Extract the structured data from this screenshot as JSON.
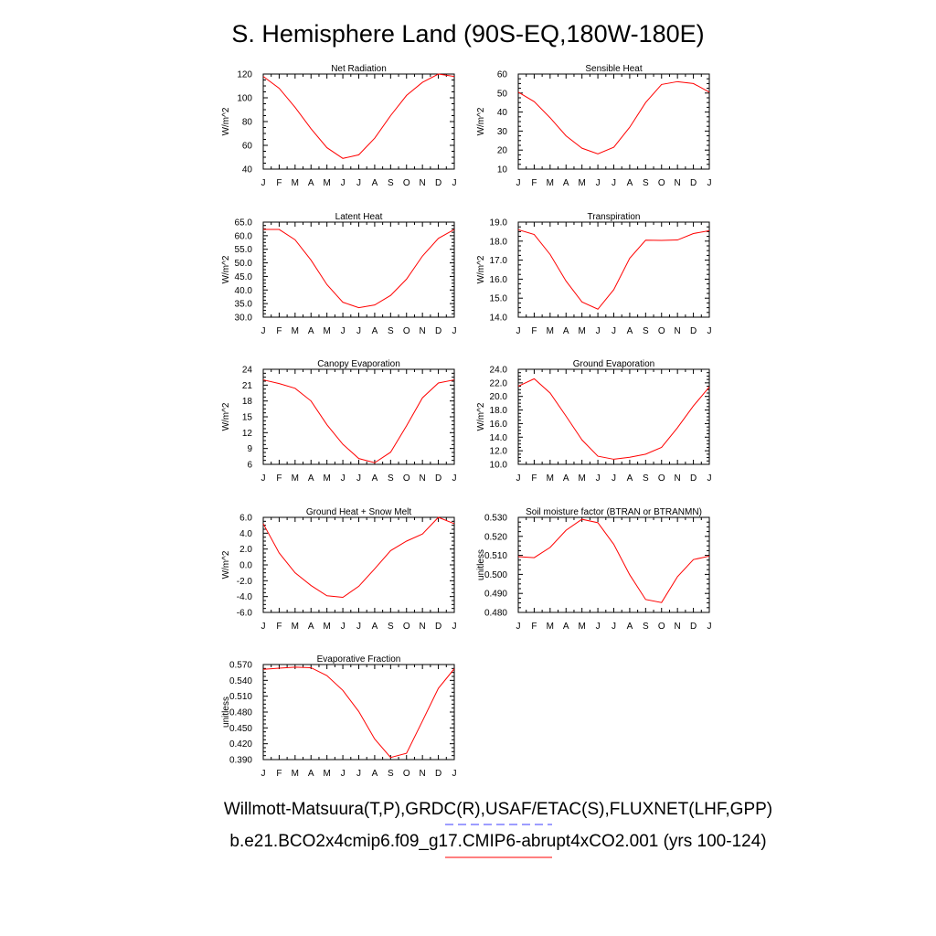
{
  "figure": {
    "title": "S. Hemisphere Land (90S-EQ,180W-180E)",
    "legend": [
      {
        "text": "Willmott-Matsuura(T,P),GRDC(R),USAF/ETAC(S),FLUXNET(LHF,GPP)",
        "color": "#3b3bff",
        "style": "dashed"
      },
      {
        "text": "b.e21.BCO2x4cmip6.f09_g17.CMIP6-abrupt4xCO2.001 (yrs 100-124)",
        "color": "#ff0000",
        "style": "solid"
      }
    ],
    "line_color": "#ff0000"
  },
  "chart_data": [
    {
      "type": "line",
      "title": "Net Radiation",
      "ylabel": "W/m^2",
      "categories": [
        "J",
        "F",
        "M",
        "A",
        "M",
        "J",
        "J",
        "A",
        "S",
        "O",
        "N",
        "D",
        "J"
      ],
      "ylim": [
        40,
        120
      ],
      "yticks": [
        40,
        60,
        80,
        100,
        120
      ],
      "ytick_labels": [
        "40",
        "60",
        "80",
        "100",
        "120"
      ],
      "series": [
        {
          "values": [
            118,
            108,
            92,
            74,
            58,
            49,
            52,
            66,
            85,
            102,
            113,
            120,
            118
          ]
        }
      ]
    },
    {
      "type": "line",
      "title": "Sensible Heat",
      "ylabel": "W/m^2",
      "categories": [
        "J",
        "F",
        "M",
        "A",
        "M",
        "J",
        "J",
        "A",
        "S",
        "O",
        "N",
        "D",
        "J"
      ],
      "ylim": [
        10,
        60
      ],
      "yticks": [
        10,
        20,
        30,
        40,
        50,
        60
      ],
      "ytick_labels": [
        "10",
        "20",
        "30",
        "40",
        "50",
        "60"
      ],
      "series": [
        {
          "values": [
            50.5,
            45.5,
            37,
            27.5,
            21,
            18,
            21.5,
            32,
            45,
            54.5,
            56,
            55,
            50.5
          ]
        }
      ]
    },
    {
      "type": "line",
      "title": "Latent Heat",
      "ylabel": "W/m^2",
      "categories": [
        "J",
        "F",
        "M",
        "A",
        "M",
        "J",
        "J",
        "A",
        "S",
        "O",
        "N",
        "D",
        "J"
      ],
      "ylim": [
        30,
        65
      ],
      "yticks": [
        30,
        35,
        40,
        45,
        50,
        55,
        60,
        65
      ],
      "ytick_labels": [
        "30.0",
        "35.0",
        "40.0",
        "45.0",
        "50.0",
        "55.0",
        "60.0",
        "65.0"
      ],
      "series": [
        {
          "values": [
            62.3,
            62.3,
            58.5,
            51,
            42,
            35.5,
            33.5,
            34.5,
            38,
            44,
            52.5,
            59,
            62.3
          ]
        }
      ]
    },
    {
      "type": "line",
      "title": "Transpiration",
      "ylabel": "W/m^2",
      "categories": [
        "J",
        "F",
        "M",
        "A",
        "M",
        "J",
        "J",
        "A",
        "S",
        "O",
        "N",
        "D",
        "J"
      ],
      "ylim": [
        14,
        19
      ],
      "yticks": [
        14,
        15,
        16,
        17,
        18,
        19
      ],
      "ytick_labels": [
        "14.0",
        "15.0",
        "16.0",
        "17.0",
        "18.0",
        "19.0"
      ],
      "series": [
        {
          "values": [
            18.6,
            18.35,
            17.3,
            15.9,
            14.8,
            14.42,
            15.45,
            17.1,
            18.05,
            18.04,
            18.06,
            18.4,
            18.55
          ]
        }
      ]
    },
    {
      "type": "line",
      "title": "Canopy Evaporation",
      "ylabel": "W/m^2",
      "categories": [
        "J",
        "F",
        "M",
        "A",
        "M",
        "J",
        "J",
        "A",
        "S",
        "O",
        "N",
        "D",
        "J"
      ],
      "ylim": [
        6,
        24
      ],
      "yticks": [
        6,
        9,
        12,
        15,
        18,
        21,
        24
      ],
      "ytick_labels": [
        "6",
        "9",
        "12",
        "15",
        "18",
        "21",
        "24"
      ],
      "series": [
        {
          "values": [
            22,
            21.3,
            20.4,
            18,
            13.5,
            9.8,
            7.1,
            6.3,
            8.3,
            13.3,
            18.6,
            21.4,
            22
          ]
        }
      ]
    },
    {
      "type": "line",
      "title": "Ground Evaporation",
      "ylabel": "W/m^2",
      "categories": [
        "J",
        "F",
        "M",
        "A",
        "M",
        "J",
        "J",
        "A",
        "S",
        "O",
        "N",
        "D",
        "J"
      ],
      "ylim": [
        10,
        24
      ],
      "yticks": [
        10,
        12,
        14,
        16,
        18,
        20,
        22,
        24
      ],
      "ytick_labels": [
        "10.0",
        "12.0",
        "14.0",
        "16.0",
        "18.0",
        "20.0",
        "22.0",
        "24.0"
      ],
      "series": [
        {
          "values": [
            21.5,
            22.6,
            20.5,
            17.1,
            13.6,
            11.2,
            10.75,
            11.05,
            11.5,
            12.5,
            15.4,
            18.6,
            21.4
          ]
        }
      ]
    },
    {
      "type": "line",
      "title": "Ground Heat + Snow Melt",
      "ylabel": "W/m^2",
      "categories": [
        "J",
        "F",
        "M",
        "A",
        "M",
        "J",
        "J",
        "A",
        "S",
        "O",
        "N",
        "D",
        "J"
      ],
      "ylim": [
        -6,
        6
      ],
      "yticks": [
        -6,
        -4,
        -2,
        0,
        2,
        4,
        6
      ],
      "ytick_labels": [
        "-6.0",
        "-4.0",
        "-2.0",
        "0.0",
        "2.0",
        "4.0",
        "6.0"
      ],
      "series": [
        {
          "values": [
            5.2,
            1.5,
            -1.0,
            -2.6,
            -3.9,
            -4.1,
            -2.7,
            -0.5,
            1.8,
            3.0,
            3.9,
            6.0,
            5.2
          ]
        }
      ]
    },
    {
      "type": "line",
      "title": "Soil moisture factor (BTRAN or BTRANMN)",
      "ylabel": "unitless",
      "categories": [
        "J",
        "F",
        "M",
        "A",
        "M",
        "J",
        "J",
        "A",
        "S",
        "O",
        "N",
        "D",
        "J"
      ],
      "ylim": [
        0.48,
        0.53
      ],
      "yticks": [
        0.48,
        0.49,
        0.5,
        0.51,
        0.52,
        0.53
      ],
      "ytick_labels": [
        "0.480",
        "0.490",
        "0.500",
        "0.510",
        "0.520",
        "0.530"
      ],
      "series": [
        {
          "values": [
            0.5093,
            0.5088,
            0.5142,
            0.5232,
            0.529,
            0.5272,
            0.5158,
            0.4998,
            0.4868,
            0.4852,
            0.4988,
            0.5078,
            0.5096
          ]
        }
      ]
    },
    {
      "type": "line",
      "title": "Evaporative Fraction",
      "ylabel": "unitless",
      "categories": [
        "J",
        "F",
        "M",
        "A",
        "M",
        "J",
        "J",
        "A",
        "S",
        "O",
        "N",
        "D",
        "J"
      ],
      "ylim": [
        0.39,
        0.57
      ],
      "yticks": [
        0.39,
        0.42,
        0.45,
        0.48,
        0.51,
        0.54,
        0.57
      ],
      "ytick_labels": [
        "0.390",
        "0.420",
        "0.450",
        "0.480",
        "0.510",
        "0.540",
        "0.570"
      ],
      "series": [
        {
          "values": [
            0.561,
            0.563,
            0.565,
            0.564,
            0.549,
            0.521,
            0.481,
            0.429,
            0.394,
            0.402,
            0.463,
            0.525,
            0.562
          ]
        }
      ]
    }
  ]
}
